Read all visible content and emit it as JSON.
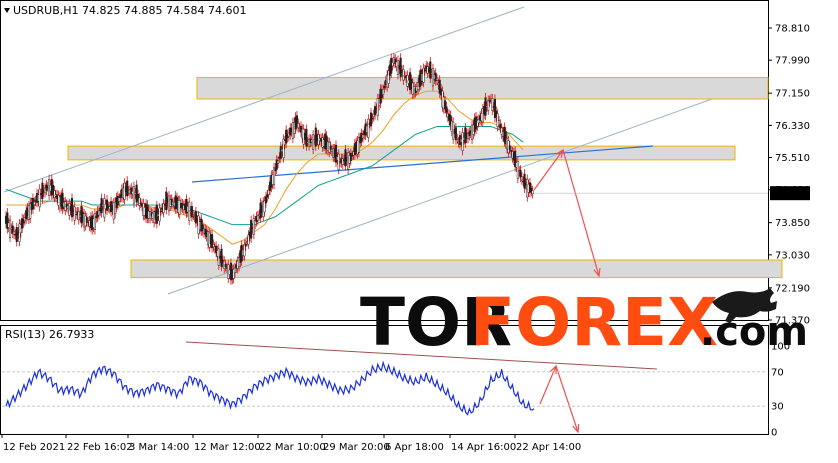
{
  "chart_data": {
    "type": "candlestick",
    "symbol_info": "USDRUB,H1  74.825 74.885 74.584 74.601",
    "last_price": "74.601",
    "price_ticks": [
      "78.810",
      "77.990",
      "77.150",
      "76.330",
      "75.510",
      "74.690",
      "73.850",
      "73.030",
      "72.190",
      "71.370"
    ],
    "price_range": [
      71.37,
      78.81
    ],
    "time_labels": [
      "12 Feb 2021",
      "22 Feb 16:02",
      "3 Mar 14:00",
      "12 Mar 12:00",
      "22 Mar 10:00",
      "29 Mar 20:00",
      "6 Apr 18:00",
      "14 Apr 16:00",
      "22 Apr 14:00"
    ],
    "price_series": [
      73.9,
      73.5,
      74.1,
      74.5,
      74.8,
      74.4,
      74.2,
      74.0,
      73.8,
      74.3,
      74.2,
      74.7,
      74.6,
      74.1,
      74.0,
      74.4,
      74.3,
      74.2,
      73.8,
      73.4,
      72.9,
      72.5,
      73.1,
      73.8,
      74.3,
      75.2,
      76.0,
      76.4,
      75.9,
      76.0,
      75.8,
      75.4,
      75.5,
      76.0,
      76.5,
      77.2,
      78.0,
      77.6,
      77.2,
      77.8,
      77.5,
      76.6,
      75.9,
      76.1,
      76.5,
      77.0,
      76.2,
      75.6,
      74.9,
      74.6
    ],
    "moving_averages": [
      {
        "color": "#f0a020",
        "values": [
          74.3,
          74.3,
          74.3,
          74.3,
          74.4,
          74.4,
          74.3,
          74.3,
          74.2,
          74.2,
          74.2,
          74.3,
          74.3,
          74.3,
          74.2,
          74.2,
          74.1,
          74.0,
          73.9,
          73.7,
          73.5,
          73.3,
          73.4,
          73.6,
          73.8,
          74.2,
          74.7,
          75.1,
          75.4,
          75.6,
          75.6,
          75.6,
          75.6,
          75.7,
          75.9,
          76.2,
          76.6,
          76.9,
          77.1,
          77.2,
          77.2,
          77.0,
          76.7,
          76.5,
          76.4,
          76.4,
          76.3,
          76.0,
          75.7
        ]
      },
      {
        "color": "#10a090",
        "values": [
          74.7,
          74.6,
          74.5,
          74.4,
          74.4,
          74.4,
          74.4,
          74.4,
          74.3,
          74.3,
          74.3,
          74.3,
          74.3,
          74.3,
          74.3,
          74.3,
          74.2,
          74.2,
          74.1,
          74.0,
          73.9,
          73.8,
          73.8,
          73.8,
          73.9,
          74.0,
          74.2,
          74.4,
          74.6,
          74.8,
          74.9,
          75.0,
          75.1,
          75.2,
          75.3,
          75.5,
          75.7,
          75.9,
          76.1,
          76.2,
          76.3,
          76.3,
          76.3,
          76.3,
          76.3,
          76.3,
          76.2,
          76.1,
          75.9
        ]
      }
    ],
    "support_resistance_zones": [
      [
        77.0,
        77.55
      ],
      [
        75.45,
        75.8
      ],
      [
        72.45,
        72.9
      ]
    ],
    "rsi": {
      "label": "RSI(13) 26.7933",
      "ticks": [
        "100",
        "70",
        "30",
        "0"
      ],
      "range": [
        0,
        100
      ],
      "levels": [
        30,
        70
      ],
      "values": [
        30,
        42,
        55,
        70,
        62,
        48,
        50,
        44,
        66,
        74,
        68,
        52,
        45,
        48,
        55,
        50,
        44,
        62,
        58,
        45,
        38,
        32,
        40,
        52,
        60,
        65,
        70,
        62,
        58,
        62,
        55,
        48,
        50,
        60,
        72,
        76,
        70,
        62,
        58,
        64,
        55,
        45,
        30,
        22,
        35,
        60,
        68,
        50,
        32,
        27
      ]
    }
  },
  "branding": {
    "tor": "TOR",
    "forex": "FOREX",
    "com": ".com"
  }
}
